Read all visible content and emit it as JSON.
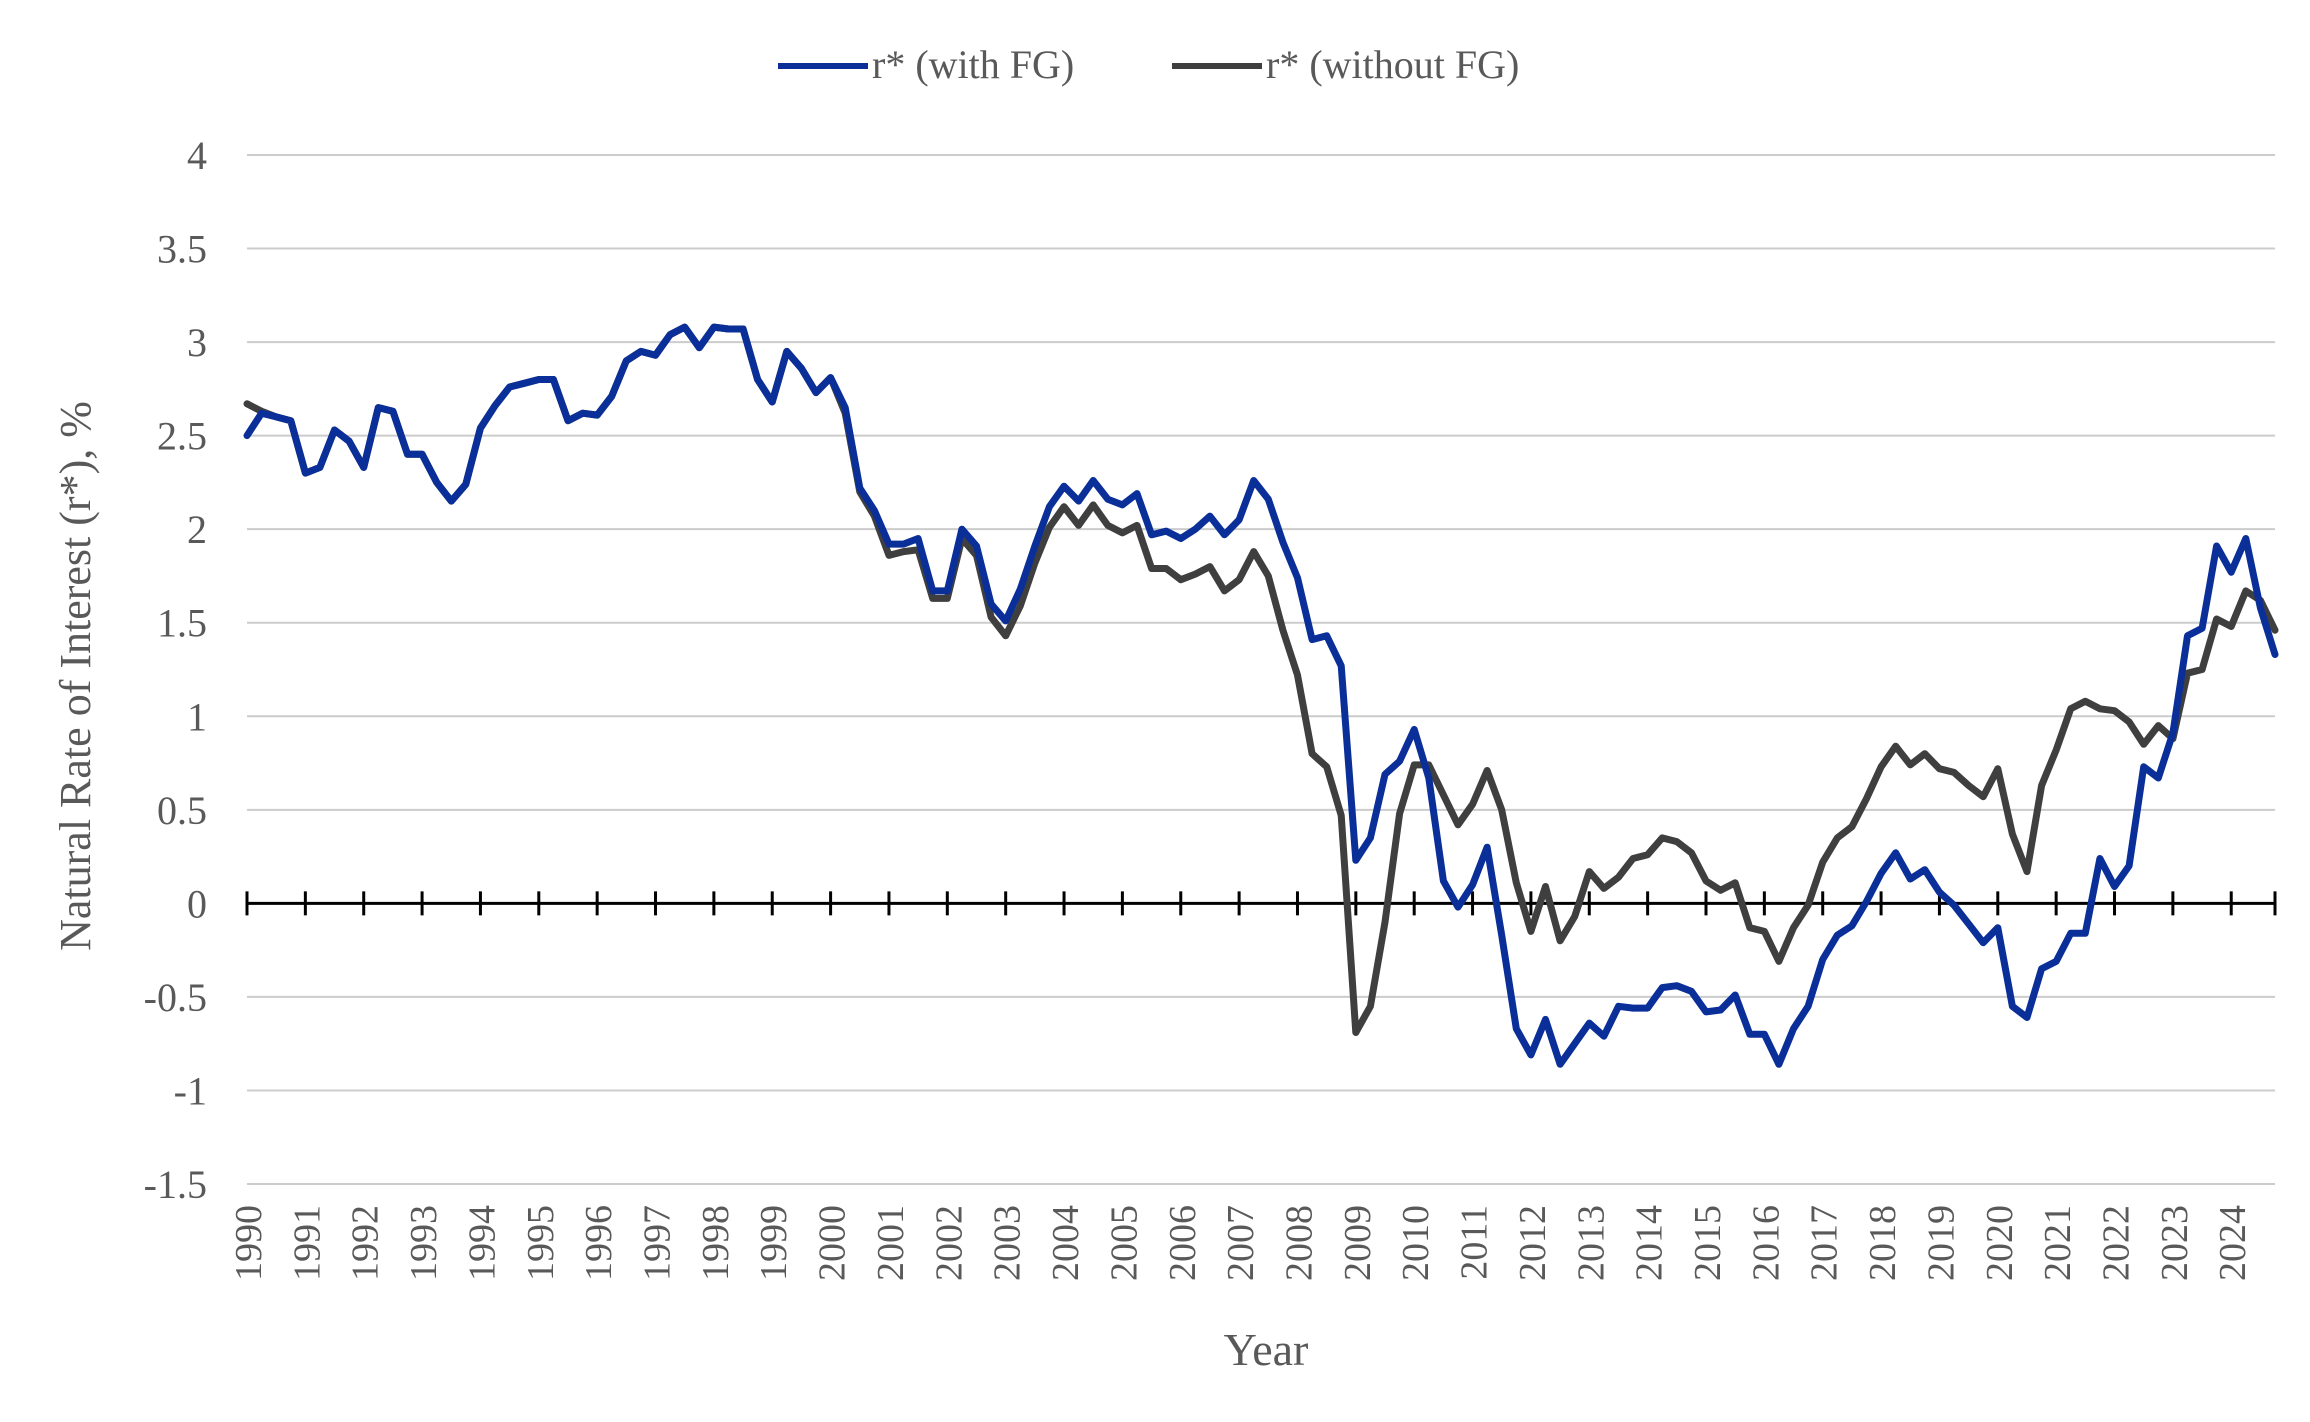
{
  "chart_data": {
    "type": "line",
    "title": "",
    "xlabel": "Year",
    "ylabel": "Natural Rate of Interest (r*), %",
    "ylim": [
      -1.5,
      4
    ],
    "yticks": [
      -1.5,
      -1,
      -0.5,
      0,
      0.5,
      1,
      1.5,
      2,
      2.5,
      3,
      3.5,
      4
    ],
    "ytick_labels": [
      "-1.5",
      "-1",
      "-0.5",
      "0",
      "0.5",
      "1",
      "1.5",
      "2",
      "2.5",
      "3",
      "3.5",
      "4"
    ],
    "xlim": [
      1990,
      2024.75
    ],
    "xtick_labels": [
      "1990",
      "1991",
      "1992",
      "1993",
      "1994",
      "1995",
      "1996",
      "1997",
      "1998",
      "1999",
      "2000",
      "2001",
      "2002",
      "2003",
      "2004",
      "2005",
      "2006",
      "2007",
      "2008",
      "2009",
      "2010",
      "2011",
      "2012",
      "2013",
      "2014",
      "2015",
      "2016",
      "2017",
      "2018",
      "2019",
      "2020",
      "2021",
      "2022",
      "2023",
      "2024"
    ],
    "grid": true,
    "legend": "top-center",
    "colors": {
      "with_fg": "#0a2f99",
      "without_fg": "#3f3f3f",
      "grid": "#cccccc",
      "axis": "#000000",
      "text": "#595959"
    },
    "series": [
      {
        "name": "r* (with FG)",
        "start_year": 1990,
        "frequency": "quarterly",
        "values": [
          2.5,
          2.62,
          2.6,
          2.58,
          2.3,
          2.33,
          2.53,
          2.47,
          2.33,
          2.65,
          2.63,
          2.4,
          2.4,
          2.25,
          2.15,
          2.24,
          2.54,
          2.66,
          2.76,
          2.78,
          2.8,
          2.8,
          2.58,
          2.62,
          2.61,
          2.71,
          2.9,
          2.95,
          2.93,
          3.04,
          3.08,
          2.97,
          3.08,
          3.07,
          3.07,
          2.8,
          2.68,
          2.95,
          2.86,
          2.73,
          2.81,
          2.65,
          2.22,
          2.1,
          1.92,
          1.92,
          1.95,
          1.67,
          1.67,
          2.0,
          1.91,
          1.6,
          1.51,
          1.68,
          1.91,
          2.12,
          2.23,
          2.15,
          2.26,
          2.16,
          2.13,
          2.19,
          1.97,
          1.99,
          1.95,
          2.0,
          2.07,
          1.97,
          2.05,
          2.26,
          2.16,
          1.93,
          1.74,
          1.41,
          1.43,
          1.27,
          0.23,
          0.35,
          0.69,
          0.76,
          0.93,
          0.67,
          0.12,
          -0.02,
          0.1,
          0.3,
          -0.17,
          -0.67,
          -0.81,
          -0.62,
          -0.86,
          -0.75,
          -0.64,
          -0.71,
          -0.55,
          -0.56,
          -0.56,
          -0.45,
          -0.44,
          -0.47,
          -0.58,
          -0.57,
          -0.49,
          -0.7,
          -0.7,
          -0.86,
          -0.67,
          -0.55,
          -0.3,
          -0.17,
          -0.12,
          0.01,
          0.16,
          0.27,
          0.13,
          0.18,
          0.06,
          -0.01,
          -0.11,
          -0.21,
          -0.13,
          -0.55,
          -0.61,
          -0.35,
          -0.31,
          -0.16,
          -0.16,
          0.24,
          0.09,
          0.2,
          0.73,
          0.67,
          0.91,
          1.43,
          1.47,
          1.91,
          1.77,
          1.95,
          1.58,
          1.33
        ]
      },
      {
        "name": "r* (without FG)",
        "start_year": 1990,
        "frequency": "quarterly",
        "values": [
          2.67,
          2.63,
          2.6,
          2.58,
          2.3,
          2.33,
          2.53,
          2.47,
          2.33,
          2.65,
          2.63,
          2.4,
          2.4,
          2.25,
          2.15,
          2.24,
          2.54,
          2.66,
          2.76,
          2.78,
          2.8,
          2.8,
          2.58,
          2.62,
          2.61,
          2.71,
          2.9,
          2.95,
          2.93,
          3.04,
          3.08,
          2.97,
          3.08,
          3.07,
          3.07,
          2.8,
          2.68,
          2.95,
          2.86,
          2.73,
          2.81,
          2.62,
          2.2,
          2.07,
          1.86,
          1.88,
          1.89,
          1.63,
          1.63,
          1.95,
          1.86,
          1.53,
          1.43,
          1.59,
          1.82,
          2.01,
          2.12,
          2.02,
          2.13,
          2.02,
          1.98,
          2.02,
          1.79,
          1.79,
          1.73,
          1.76,
          1.8,
          1.67,
          1.73,
          1.88,
          1.75,
          1.46,
          1.22,
          0.8,
          0.73,
          0.47,
          -0.69,
          -0.55,
          -0.1,
          0.48,
          0.74,
          0.74,
          0.58,
          0.42,
          0.53,
          0.71,
          0.5,
          0.11,
          -0.15,
          0.09,
          -0.2,
          -0.07,
          0.17,
          0.08,
          0.14,
          0.24,
          0.26,
          0.35,
          0.33,
          0.27,
          0.12,
          0.07,
          0.11,
          -0.13,
          -0.15,
          -0.31,
          -0.13,
          -0.01,
          0.22,
          0.35,
          0.41,
          0.56,
          0.73,
          0.84,
          0.74,
          0.8,
          0.72,
          0.7,
          0.63,
          0.57,
          0.72,
          0.37,
          0.17,
          0.63,
          0.82,
          1.04,
          1.08,
          1.04,
          1.03,
          0.97,
          0.85,
          0.95,
          0.88,
          1.23,
          1.25,
          1.52,
          1.48,
          1.67,
          1.62,
          1.46
        ]
      }
    ]
  }
}
